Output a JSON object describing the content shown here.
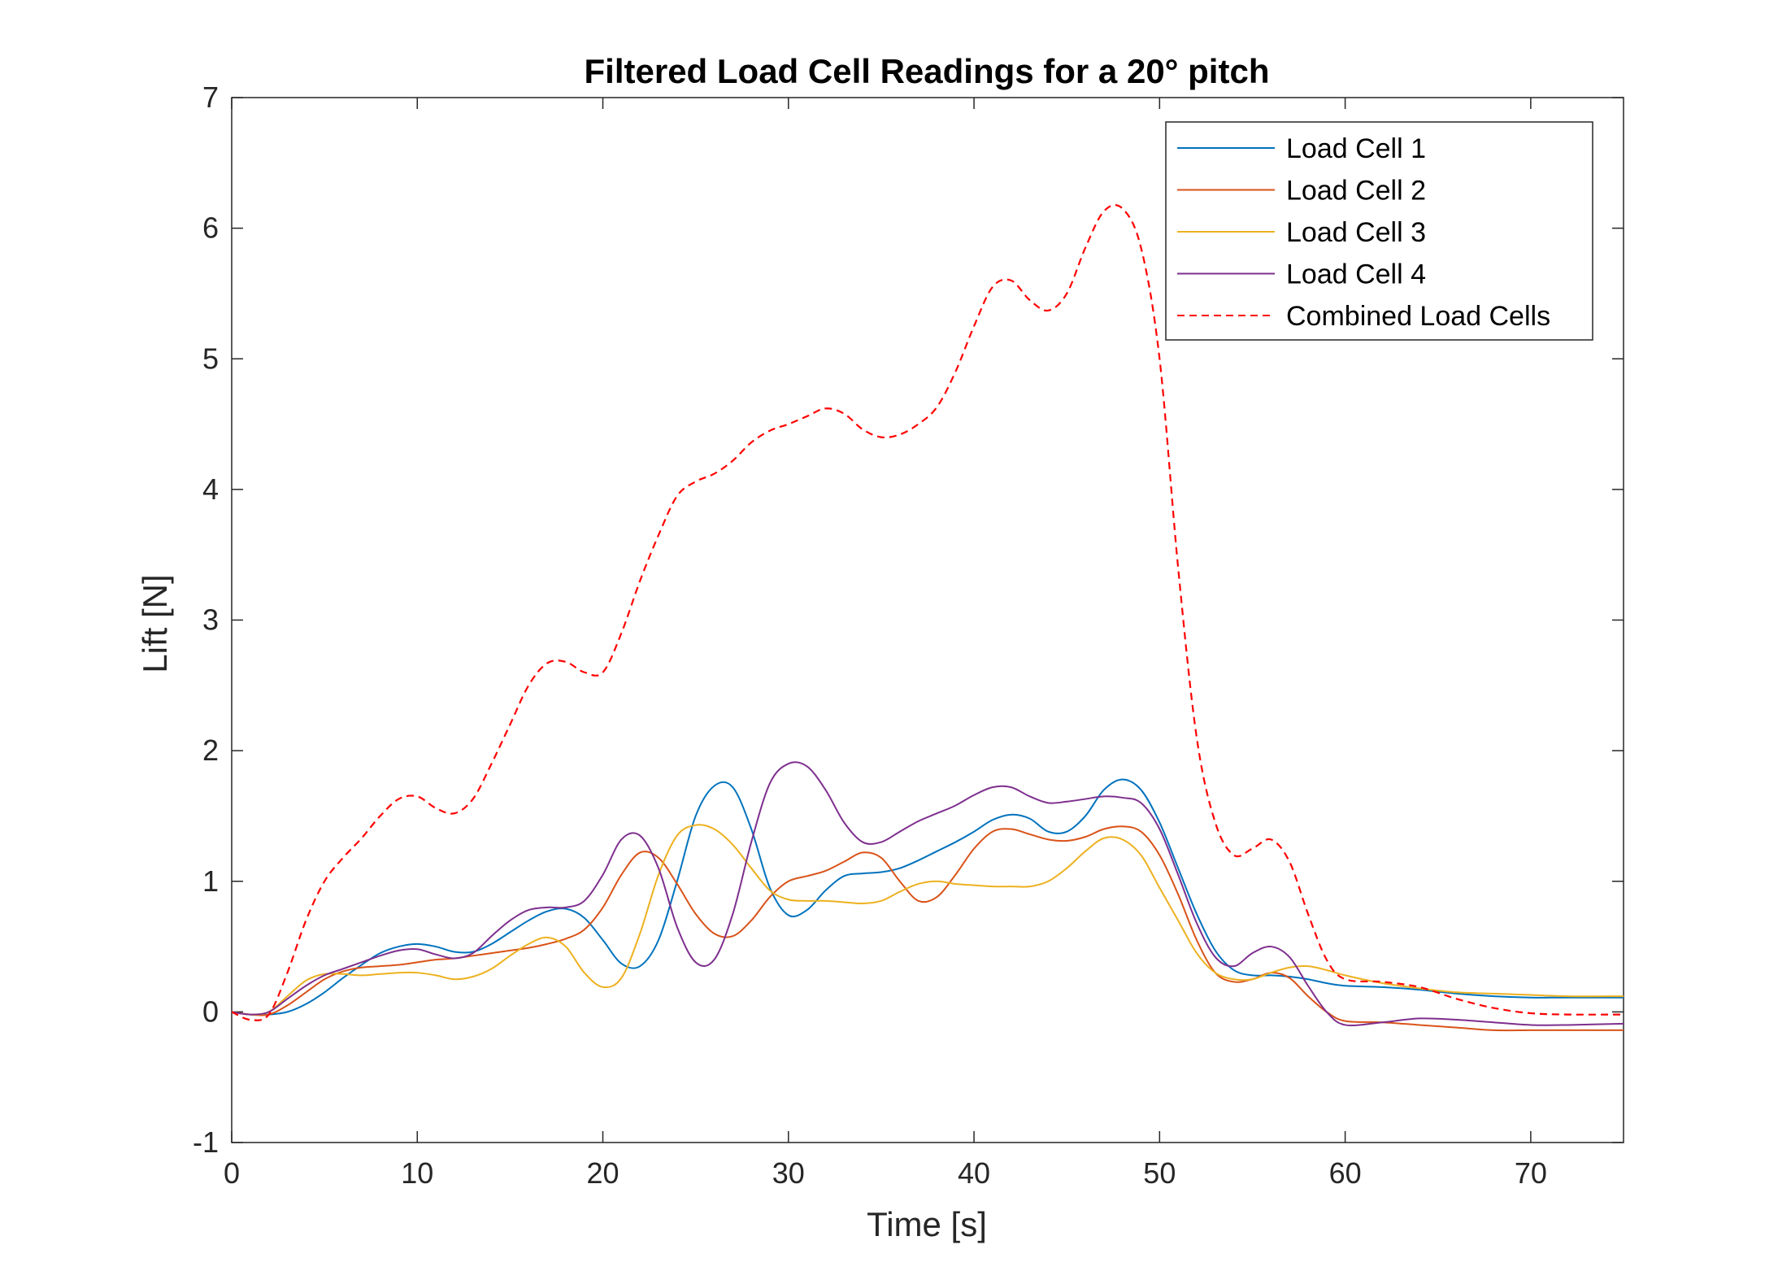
{
  "chart_data": {
    "type": "line",
    "title": "Filtered Load Cell Readings for a 20° pitch",
    "xlabel": "Time [s]",
    "ylabel": "Lift [N]",
    "xlim": [
      0,
      75
    ],
    "ylim": [
      -1,
      7
    ],
    "xticks": [
      0,
      10,
      20,
      30,
      40,
      50,
      60,
      70
    ],
    "yticks": [
      -1,
      0,
      1,
      2,
      3,
      4,
      5,
      6,
      7
    ],
    "grid": false,
    "legend_position": "top-right",
    "series": [
      {
        "name": "Load Cell 1",
        "color": "#0072BD",
        "dash": "solid",
        "x": [
          0,
          1,
          2,
          3,
          4,
          5,
          6,
          7,
          8,
          9,
          10,
          11,
          12,
          13,
          14,
          15,
          16,
          17,
          18,
          19,
          20,
          21,
          22,
          23,
          24,
          25,
          26,
          27,
          28,
          29,
          30,
          31,
          32,
          33,
          34,
          35,
          36,
          37,
          38,
          39,
          40,
          41,
          42,
          43,
          44,
          45,
          46,
          47,
          48,
          49,
          50,
          51,
          52,
          53,
          54,
          55,
          56,
          57,
          58,
          59,
          60,
          62,
          64,
          66,
          68,
          70,
          72,
          75
        ],
        "y": [
          0.0,
          -0.02,
          -0.02,
          0.0,
          0.06,
          0.15,
          0.26,
          0.36,
          0.45,
          0.5,
          0.52,
          0.5,
          0.46,
          0.46,
          0.52,
          0.61,
          0.7,
          0.77,
          0.79,
          0.72,
          0.55,
          0.37,
          0.35,
          0.55,
          1.0,
          1.5,
          1.73,
          1.72,
          1.4,
          0.95,
          0.74,
          0.78,
          0.93,
          1.04,
          1.06,
          1.07,
          1.1,
          1.16,
          1.23,
          1.3,
          1.38,
          1.47,
          1.51,
          1.48,
          1.38,
          1.38,
          1.5,
          1.7,
          1.78,
          1.7,
          1.45,
          1.1,
          0.75,
          0.47,
          0.32,
          0.28,
          0.28,
          0.27,
          0.25,
          0.22,
          0.2,
          0.19,
          0.17,
          0.14,
          0.12,
          0.11,
          0.11,
          0.11
        ]
      },
      {
        "name": "Load Cell 2",
        "color": "#D95319",
        "dash": "solid",
        "x": [
          0,
          1,
          2,
          3,
          4,
          5,
          6,
          7,
          8,
          9,
          10,
          11,
          12,
          13,
          14,
          15,
          16,
          17,
          18,
          19,
          20,
          21,
          22,
          23,
          24,
          25,
          26,
          27,
          28,
          29,
          30,
          31,
          32,
          33,
          34,
          35,
          36,
          37,
          38,
          39,
          40,
          41,
          42,
          43,
          44,
          45,
          46,
          47,
          48,
          49,
          50,
          51,
          52,
          53,
          54,
          55,
          56,
          57,
          58,
          59,
          60,
          62,
          64,
          66,
          68,
          70,
          72,
          75
        ],
        "y": [
          0.0,
          -0.02,
          -0.02,
          0.05,
          0.15,
          0.25,
          0.31,
          0.34,
          0.35,
          0.36,
          0.38,
          0.4,
          0.41,
          0.43,
          0.45,
          0.47,
          0.49,
          0.52,
          0.56,
          0.63,
          0.8,
          1.05,
          1.22,
          1.18,
          0.98,
          0.75,
          0.6,
          0.58,
          0.7,
          0.88,
          1.0,
          1.04,
          1.08,
          1.15,
          1.22,
          1.18,
          1.0,
          0.85,
          0.88,
          1.05,
          1.25,
          1.38,
          1.4,
          1.36,
          1.32,
          1.31,
          1.34,
          1.4,
          1.42,
          1.38,
          1.2,
          0.9,
          0.55,
          0.3,
          0.23,
          0.25,
          0.3,
          0.26,
          0.12,
          0.0,
          -0.07,
          -0.08,
          -0.1,
          -0.12,
          -0.14,
          -0.14,
          -0.14,
          -0.14
        ]
      },
      {
        "name": "Load Cell 3",
        "color": "#EDB120",
        "dash": "solid",
        "x": [
          0,
          1,
          2,
          3,
          4,
          5,
          6,
          7,
          8,
          9,
          10,
          11,
          12,
          13,
          14,
          15,
          16,
          17,
          18,
          19,
          20,
          21,
          22,
          23,
          24,
          25,
          26,
          27,
          28,
          29,
          30,
          31,
          32,
          33,
          34,
          35,
          36,
          37,
          38,
          39,
          40,
          41,
          42,
          43,
          44,
          45,
          46,
          47,
          48,
          49,
          50,
          51,
          52,
          53,
          54,
          55,
          56,
          57,
          58,
          59,
          60,
          62,
          64,
          66,
          68,
          70,
          72,
          75
        ],
        "y": [
          0.0,
          -0.02,
          0.0,
          0.12,
          0.24,
          0.29,
          0.29,
          0.28,
          0.29,
          0.3,
          0.3,
          0.28,
          0.25,
          0.27,
          0.33,
          0.43,
          0.52,
          0.57,
          0.5,
          0.3,
          0.19,
          0.26,
          0.6,
          1.05,
          1.35,
          1.43,
          1.4,
          1.28,
          1.1,
          0.93,
          0.86,
          0.85,
          0.85,
          0.84,
          0.83,
          0.85,
          0.92,
          0.98,
          1.0,
          0.98,
          0.97,
          0.96,
          0.96,
          0.96,
          1.0,
          1.1,
          1.23,
          1.33,
          1.32,
          1.2,
          0.95,
          0.7,
          0.45,
          0.3,
          0.25,
          0.25,
          0.3,
          0.34,
          0.35,
          0.32,
          0.28,
          0.22,
          0.18,
          0.15,
          0.14,
          0.13,
          0.12,
          0.12
        ]
      },
      {
        "name": "Load Cell 4",
        "color": "#7E2F8E",
        "dash": "solid",
        "x": [
          0,
          1,
          2,
          3,
          4,
          5,
          6,
          7,
          8,
          9,
          10,
          11,
          12,
          13,
          14,
          15,
          16,
          17,
          18,
          19,
          20,
          21,
          22,
          23,
          24,
          25,
          26,
          27,
          28,
          29,
          30,
          31,
          32,
          33,
          34,
          35,
          36,
          37,
          38,
          39,
          40,
          41,
          42,
          43,
          44,
          45,
          46,
          47,
          48,
          49,
          50,
          51,
          52,
          53,
          54,
          55,
          56,
          57,
          58,
          59,
          60,
          62,
          64,
          66,
          68,
          70,
          72,
          75
        ],
        "y": [
          0.0,
          -0.02,
          0.0,
          0.1,
          0.2,
          0.28,
          0.33,
          0.38,
          0.43,
          0.47,
          0.48,
          0.44,
          0.41,
          0.45,
          0.58,
          0.7,
          0.78,
          0.8,
          0.8,
          0.85,
          1.05,
          1.32,
          1.35,
          1.1,
          0.65,
          0.38,
          0.4,
          0.75,
          1.3,
          1.75,
          1.9,
          1.88,
          1.7,
          1.45,
          1.3,
          1.3,
          1.38,
          1.46,
          1.52,
          1.58,
          1.66,
          1.72,
          1.72,
          1.65,
          1.6,
          1.61,
          1.63,
          1.65,
          1.64,
          1.6,
          1.4,
          1.05,
          0.68,
          0.42,
          0.35,
          0.45,
          0.5,
          0.42,
          0.2,
          0.0,
          -0.1,
          -0.08,
          -0.05,
          -0.06,
          -0.08,
          -0.1,
          -0.1,
          -0.09
        ]
      },
      {
        "name": "Combined Load Cells",
        "color": "#FF0000",
        "dash": "dashed",
        "x": [
          0,
          1,
          2,
          3,
          4,
          5,
          6,
          7,
          8,
          9,
          10,
          11,
          12,
          13,
          14,
          15,
          16,
          17,
          18,
          19,
          20,
          21,
          22,
          23,
          24,
          25,
          26,
          27,
          28,
          29,
          30,
          31,
          32,
          33,
          34,
          35,
          36,
          37,
          38,
          39,
          40,
          41,
          42,
          43,
          44,
          45,
          46,
          47,
          48,
          49,
          50,
          51,
          52,
          53,
          54,
          55,
          56,
          57,
          58,
          59,
          60,
          62,
          64,
          66,
          68,
          70,
          72,
          75
        ],
        "y": [
          0.0,
          -0.06,
          -0.02,
          0.3,
          0.7,
          1.0,
          1.18,
          1.33,
          1.5,
          1.63,
          1.65,
          1.56,
          1.52,
          1.63,
          1.9,
          2.2,
          2.5,
          2.67,
          2.68,
          2.6,
          2.6,
          2.9,
          3.3,
          3.65,
          3.95,
          4.06,
          4.12,
          4.22,
          4.36,
          4.45,
          4.5,
          4.56,
          4.62,
          4.58,
          4.46,
          4.4,
          4.42,
          4.5,
          4.63,
          4.9,
          5.25,
          5.55,
          5.6,
          5.45,
          5.37,
          5.5,
          5.85,
          6.13,
          6.15,
          5.85,
          5.0,
          3.4,
          2.1,
          1.45,
          1.2,
          1.25,
          1.32,
          1.15,
          0.75,
          0.4,
          0.25,
          0.23,
          0.19,
          0.1,
          0.03,
          -0.01,
          -0.02,
          -0.02
        ]
      }
    ]
  }
}
